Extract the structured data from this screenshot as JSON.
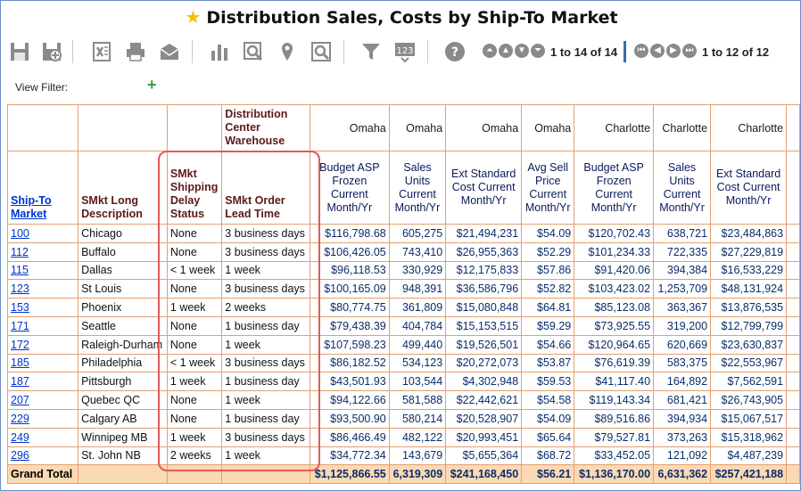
{
  "title": "Distribution Sales, Costs by Ship-To Market",
  "pager": {
    "rows": "1 to 14 of 14",
    "cols": "1 to 12 of 12"
  },
  "filter_label": "View Filter:",
  "headers": {
    "dc_warehouse": "Distribution Center Warehouse",
    "ship_to_market": "Ship-To Market",
    "smkt_long_desc": "SMkt Long Description",
    "smkt_delay": "SMkt Shipping Delay Status",
    "smkt_lead": "SMkt Order Lead Time",
    "locations": [
      "Omaha",
      "Omaha",
      "Omaha",
      "Omaha",
      "Charlotte",
      "Charlotte",
      "Charlotte"
    ],
    "measures": [
      "Budget ASP Frozen Current Month/Yr",
      "Sales Units Current Month/Yr",
      "Ext Standard Cost Current Month/Yr",
      "Avg Sell Price Current Month/Yr",
      "Budget ASP Frozen Current Month/Yr",
      "Sales Units Current Month/Yr",
      "Ext Standard Cost Current Month/Yr"
    ]
  },
  "rows": [
    {
      "market": "100",
      "desc": "Chicago",
      "delay": "None",
      "lead": "3 business days",
      "vals": [
        "$116,798.68",
        "605,275",
        "$21,494,231",
        "$54.09",
        "$120,702.43",
        "638,721",
        "$23,484,863"
      ]
    },
    {
      "market": "112",
      "desc": "Buffalo",
      "delay": "None",
      "lead": "3 business days",
      "vals": [
        "$106,426.05",
        "743,410",
        "$26,955,363",
        "$52.29",
        "$101,234.33",
        "722,335",
        "$27,229,819"
      ]
    },
    {
      "market": "115",
      "desc": "Dallas",
      "delay": "< 1 week",
      "lead": "1 week",
      "vals": [
        "$96,118.53",
        "330,929",
        "$12,175,833",
        "$57.86",
        "$91,420.06",
        "394,384",
        "$16,533,229"
      ]
    },
    {
      "market": "123",
      "desc": "St Louis",
      "delay": "None",
      "lead": "3 business days",
      "vals": [
        "$100,165.09",
        "948,391",
        "$36,586,796",
        "$52.82",
        "$103,423.02",
        "1,253,709",
        "$48,131,924"
      ]
    },
    {
      "market": "153",
      "desc": "Phoenix",
      "delay": "1 week",
      "lead": "2 weeks",
      "vals": [
        "$80,774.75",
        "361,809",
        "$15,080,848",
        "$64.81",
        "$85,123.08",
        "363,367",
        "$13,876,535"
      ]
    },
    {
      "market": "171",
      "desc": "Seattle",
      "delay": "None",
      "lead": "1 business day",
      "vals": [
        "$79,438.39",
        "404,784",
        "$15,153,515",
        "$59.29",
        "$73,925.55",
        "319,200",
        "$12,799,799"
      ]
    },
    {
      "market": "172",
      "desc": "Raleigh-Durham",
      "delay": "None",
      "lead": "1 week",
      "vals": [
        "$107,598.23",
        "499,440",
        "$19,526,501",
        "$54.66",
        "$120,964.65",
        "620,669",
        "$23,630,837"
      ]
    },
    {
      "market": "185",
      "desc": "Philadelphia",
      "delay": "< 1 week",
      "lead": "3 business days",
      "vals": [
        "$86,182.52",
        "534,123",
        "$20,272,073",
        "$53.87",
        "$76,619.39",
        "583,375",
        "$22,553,967"
      ]
    },
    {
      "market": "187",
      "desc": "Pittsburgh",
      "delay": "1 week",
      "lead": "1 business day",
      "vals": [
        "$43,501.93",
        "103,544",
        "$4,302,948",
        "$59.53",
        "$41,117.40",
        "164,892",
        "$7,562,591"
      ]
    },
    {
      "market": "207",
      "desc": "Quebec QC",
      "delay": "None",
      "lead": "1 week",
      "vals": [
        "$94,122.66",
        "581,588",
        "$22,442,621",
        "$54.58",
        "$119,143.34",
        "681,421",
        "$26,743,905"
      ]
    },
    {
      "market": "229",
      "desc": "Calgary AB",
      "delay": "None",
      "lead": "1 business day",
      "vals": [
        "$93,500.90",
        "580,214",
        "$20,528,907",
        "$54.09",
        "$89,516.86",
        "394,934",
        "$15,067,517"
      ]
    },
    {
      "market": "249",
      "desc": "Winnipeg MB",
      "delay": "1 week",
      "lead": "3 business days",
      "vals": [
        "$86,466.49",
        "482,122",
        "$20,993,451",
        "$65.64",
        "$79,527.81",
        "373,263",
        "$15,318,962"
      ]
    },
    {
      "market": "296",
      "desc": "St. John NB",
      "delay": "2 weeks",
      "lead": "1 week",
      "vals": [
        "$34,772.34",
        "143,679",
        "$5,655,364",
        "$68.72",
        "$33,452.05",
        "121,092",
        "$4,487,239"
      ]
    }
  ],
  "total": {
    "label": "Grand Total",
    "vals": [
      "$1,125,866.55",
      "6,319,309",
      "$241,168,450",
      "$56.21",
      "$1,136,170.00",
      "6,631,362",
      "$257,421,188"
    ]
  },
  "toolbar_icons": [
    "save-icon",
    "save-as-icon",
    "excel-icon",
    "print-icon",
    "email-icon",
    "bar-chart-icon",
    "zoom-icon",
    "map-pin-icon",
    "search-icon",
    "filter-icon",
    "number-format-icon",
    "help-icon"
  ]
}
